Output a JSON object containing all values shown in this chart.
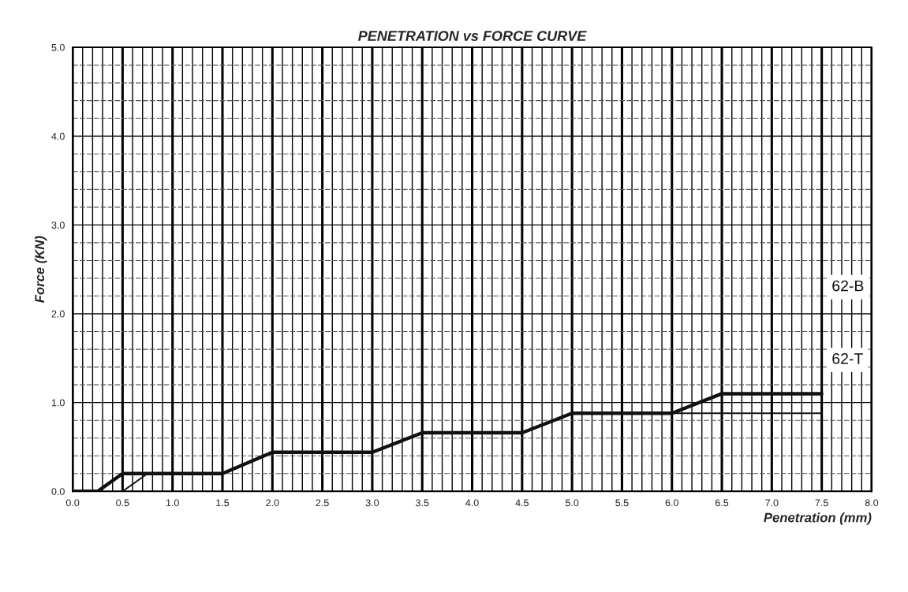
{
  "chart_data": {
    "type": "line",
    "title": "PENETRATION vs FORCE CURVE",
    "xlabel": "Penetration (mm)",
    "ylabel": "Force (KN)",
    "xlim": [
      0.0,
      8.0
    ],
    "xticks": [
      {
        "value": 0,
        "label": "0.0"
      },
      0.5,
      {
        "value": 1,
        "label": "1.0"
      },
      1.5,
      {
        "value": 2,
        "label": "2.0"
      },
      2.5,
      {
        "value": 3,
        "label": "3.0"
      },
      3.5,
      {
        "value": 4,
        "label": "4.0"
      },
      4.5,
      {
        "value": 5,
        "label": "5.0"
      },
      5.5,
      {
        "value": 6,
        "label": "6.0"
      },
      6.5,
      {
        "value": 7,
        "label": "7.0"
      },
      7.5,
      {
        "value": 8,
        "label": "8.0"
      }
    ],
    "ylim": [
      0.0,
      5.0
    ],
    "yticks": [
      {
        "value": 0,
        "label": "0.0"
      },
      {
        "value": 1,
        "label": "1.0"
      },
      {
        "value": 2,
        "label": "2.0"
      },
      {
        "value": 3,
        "label": "3.0"
      },
      {
        "value": 4,
        "label": "4.0"
      },
      {
        "value": 5,
        "label": "5.0"
      }
    ],
    "grid": true,
    "legend": false,
    "marker": "none",
    "line_style": "solid",
    "series": [
      {
        "name": "62-B",
        "color": "#111111",
        "x": [
          0.0,
          0.25,
          0.5,
          1.5,
          2.0,
          3.0,
          3.5,
          4.5,
          5.0,
          6.0,
          6.5,
          7.5
        ],
        "values": [
          0.0,
          0.0,
          0.2,
          0.2,
          0.44,
          0.44,
          0.66,
          0.66,
          0.88,
          0.88,
          1.1,
          1.1
        ]
      },
      {
        "name": "62-T",
        "color": "#111111",
        "x": [
          0.5,
          0.75,
          1.5,
          2.0,
          3.0,
          3.5,
          4.5,
          5.0,
          7.5
        ],
        "values": [
          0.0,
          0.2,
          0.2,
          0.44,
          0.44,
          0.66,
          0.66,
          0.88,
          0.88
        ]
      }
    ]
  }
}
